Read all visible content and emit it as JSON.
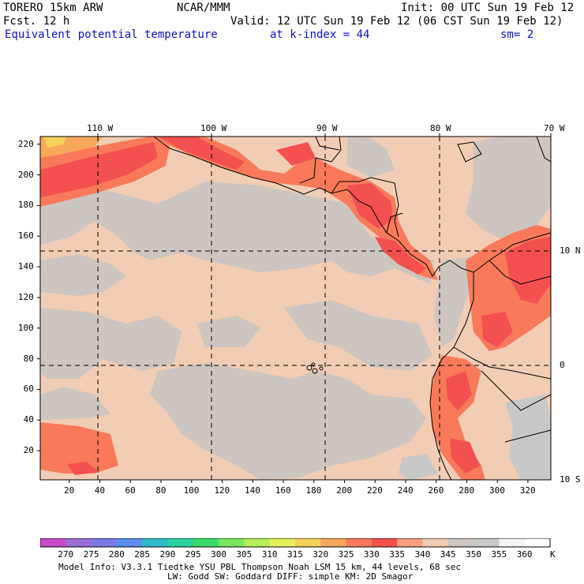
{
  "header": {
    "model": "TORERO  15km ARW",
    "org": "NCAR/MMM",
    "init": "Init: 00 UTC Sun 19 Feb 12",
    "fcst": "Fcst.   12 h",
    "valid": "Valid: 12 UTC Sun 19 Feb 12 (06 CST Sun 19 Feb 12)",
    "field": "Equivalent potential temperature",
    "level": "at k-index =  44",
    "smooth": "sm= 2"
  },
  "map": {
    "lon_labels": [
      "110 W",
      "100 W",
      "90 W",
      "80 W",
      "70 W"
    ],
    "lat_labels": [
      "10 N",
      "0",
      "10 S"
    ],
    "x_ticks": [
      "20",
      "40",
      "60",
      "80",
      "100",
      "120",
      "140",
      "160",
      "180",
      "200",
      "220",
      "240",
      "260",
      "280",
      "300",
      "320"
    ],
    "y_ticks": [
      "20",
      "40",
      "60",
      "80",
      "100",
      "120",
      "140",
      "160",
      "180",
      "200",
      "220"
    ],
    "grid_x_range": [
      1,
      335
    ],
    "grid_y_range": [
      1,
      225
    ]
  },
  "colorbar": {
    "unit": "K",
    "labels": [
      "270",
      "275",
      "280",
      "285",
      "290",
      "295",
      "300",
      "305",
      "310",
      "315",
      "320",
      "325",
      "330",
      "335",
      "340",
      "345",
      "350",
      "355",
      "360"
    ],
    "colors": [
      "#c84bc8",
      "#9b6dd6",
      "#7b7be6",
      "#5a8ff0",
      "#2fbcc8",
      "#29d3a0",
      "#3cdc6a",
      "#7ae65a",
      "#b4ee5a",
      "#e6f05a",
      "#f6d25a",
      "#f8a85a",
      "#f87a5a",
      "#f45050",
      "#f8a080",
      "#f0cdb4",
      "#cdc5bf",
      "#c8c8c8",
      "#f4f4f4",
      "#ffffff"
    ]
  },
  "footer": {
    "line1": "Model Info: V3.3.1    Tiedtke YSU PBL  Thompson     Noah LSM  15 km,    44 levels,    68 sec",
    "line2": "LW: Godd SW: Goddard DIFF: simple KM: 2D Smagor"
  }
}
